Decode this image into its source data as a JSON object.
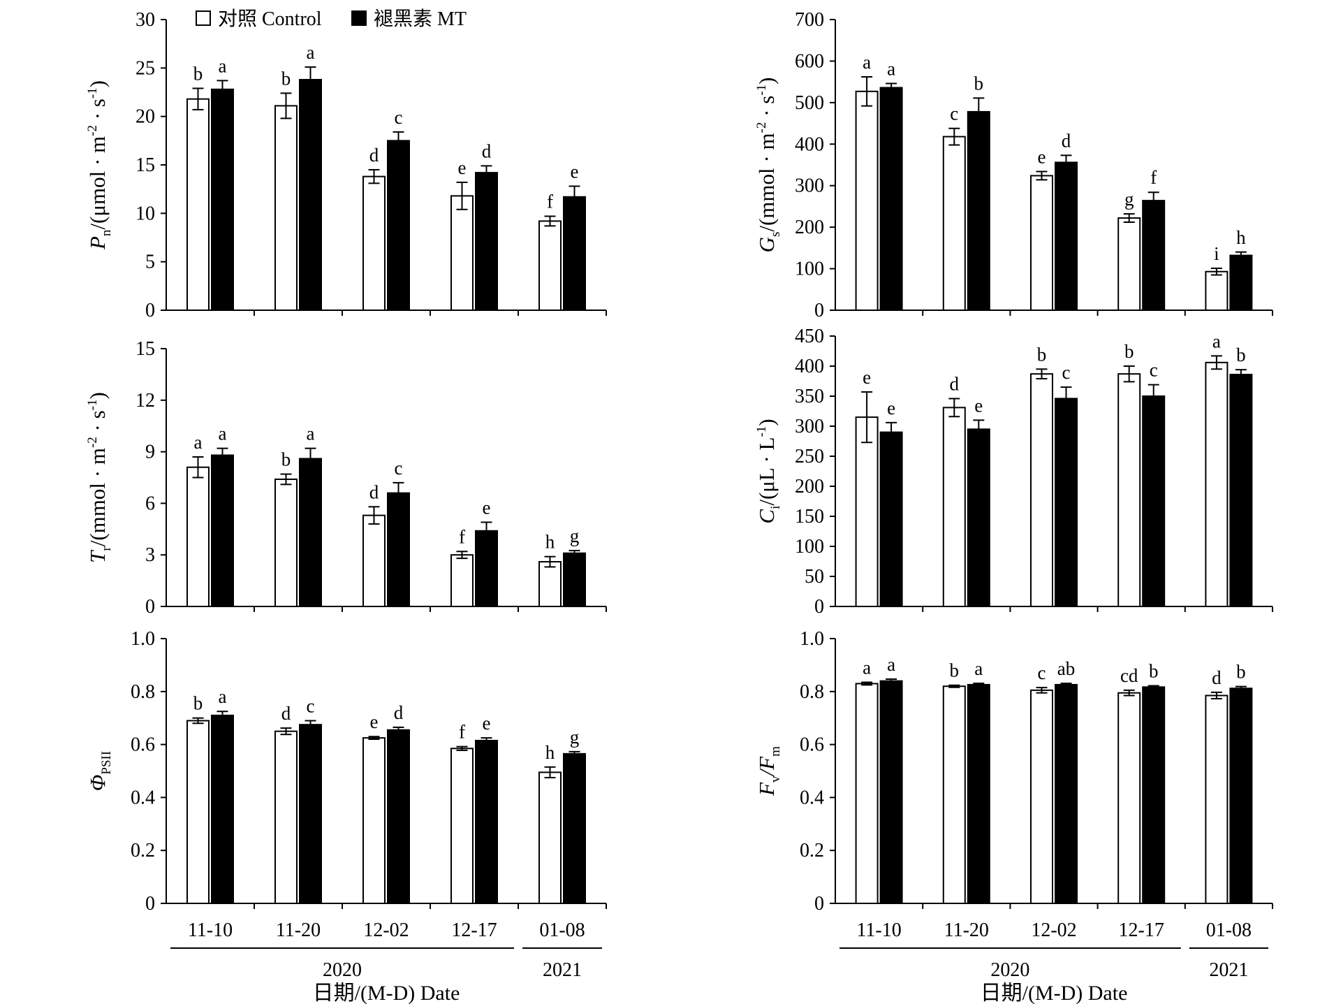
{
  "legend": [
    {
      "name": "对照 Control",
      "fill": "#ffffff"
    },
    {
      "name": "褪黑素 MT",
      "fill": "#000000"
    }
  ],
  "x_axis": {
    "dates": [
      "11-10",
      "11-20",
      "12-02",
      "12-17",
      "01-08"
    ],
    "years": [
      {
        "label": "2020",
        "span": [
          0,
          3
        ]
      },
      {
        "label": "2021",
        "span": [
          4,
          4
        ]
      }
    ],
    "title": "日期/(M-D) Date"
  },
  "colors": {
    "control": "#ffffff",
    "mt": "#000000",
    "stroke": "#000000"
  },
  "chart_data": [
    {
      "type": "bar",
      "categories": [
        "11-10",
        "11-20",
        "12-02",
        "12-17",
        "01-08"
      ],
      "ylabel": {
        "main": "P",
        "sub": "n",
        "unit": "/(μmol · m",
        "sup1": "-2",
        "mid": " · s",
        "sup2": "-1",
        "end": ")"
      },
      "ylim": [
        0,
        30
      ],
      "yticks": [
        0,
        5,
        10,
        15,
        20,
        25,
        30
      ],
      "series": [
        {
          "name": "对照 Control",
          "values": [
            21.8,
            21.1,
            13.8,
            11.8,
            9.2
          ],
          "errors": [
            1.1,
            1.3,
            0.7,
            1.4,
            0.5
          ],
          "letters": [
            "b",
            "b",
            "d",
            "e",
            "f"
          ]
        },
        {
          "name": "褪黑素 MT",
          "values": [
            22.8,
            23.8,
            17.5,
            14.2,
            11.7
          ],
          "errors": [
            0.9,
            1.3,
            0.9,
            0.7,
            1.1
          ],
          "letters": [
            "a",
            "a",
            "c",
            "d",
            "e"
          ]
        }
      ]
    },
    {
      "type": "bar",
      "categories": [
        "11-10",
        "11-20",
        "12-02",
        "12-17",
        "01-08"
      ],
      "ylabel": {
        "main": "G",
        "sub": "s",
        "unit": "/(mmol · m",
        "sup1": "-2",
        "mid": " · s",
        "sup2": "-1",
        "end": ")"
      },
      "ylim": [
        0,
        700
      ],
      "yticks": [
        0,
        100,
        200,
        300,
        400,
        500,
        600,
        700
      ],
      "series": [
        {
          "name": "对照 Control",
          "values": [
            527,
            418,
            324,
            222,
            93
          ],
          "errors": [
            35,
            20,
            10,
            10,
            8
          ],
          "letters": [
            "a",
            "c",
            "e",
            "g",
            "i"
          ]
        },
        {
          "name": "褪黑素 MT",
          "values": [
            536,
            478,
            356,
            264,
            132
          ],
          "errors": [
            10,
            33,
            17,
            20,
            8
          ],
          "letters": [
            "a",
            "b",
            "d",
            "f",
            "h"
          ]
        }
      ]
    },
    {
      "type": "bar",
      "categories": [
        "11-10",
        "11-20",
        "12-02",
        "12-17",
        "01-08"
      ],
      "ylabel": {
        "main": "T",
        "sub": "r",
        "unit": "/(mmol · m",
        "sup1": "-2",
        "mid": " · s",
        "sup2": "-1",
        "end": ")"
      },
      "ylim": [
        0,
        15
      ],
      "yticks": [
        0,
        3,
        6,
        9,
        12,
        15
      ],
      "series": [
        {
          "name": "对照 Control",
          "values": [
            8.1,
            7.4,
            5.3,
            3.0,
            2.6
          ],
          "errors": [
            0.6,
            0.3,
            0.5,
            0.2,
            0.3
          ],
          "letters": [
            "a",
            "b",
            "d",
            "f",
            "h"
          ]
        },
        {
          "name": "褪黑素 MT",
          "values": [
            8.8,
            8.6,
            6.6,
            4.4,
            3.1
          ],
          "errors": [
            0.4,
            0.6,
            0.6,
            0.5,
            0.15
          ],
          "letters": [
            "a",
            "a",
            "c",
            "e",
            "g"
          ]
        }
      ]
    },
    {
      "type": "bar",
      "categories": [
        "11-10",
        "11-20",
        "12-02",
        "12-17",
        "01-08"
      ],
      "ylabel": {
        "main": "C",
        "sub": "i",
        "unit": "/(μL · L",
        "sup1": "-1",
        "mid": "",
        "sup2": "",
        "end": ")"
      },
      "ylim": [
        0,
        450
      ],
      "yticks": [
        0,
        50,
        100,
        150,
        200,
        250,
        300,
        350,
        400,
        450
      ],
      "series": [
        {
          "name": "对照 Control",
          "values": [
            315,
            331,
            387,
            387,
            406
          ],
          "errors": [
            42,
            15,
            8,
            13,
            11
          ],
          "letters": [
            "e",
            "d",
            "b",
            "b",
            "a"
          ]
        },
        {
          "name": "褪黑素 MT",
          "values": [
            290,
            295,
            346,
            350,
            386
          ],
          "errors": [
            16,
            15,
            19,
            19,
            8
          ],
          "letters": [
            "e",
            "e",
            "c",
            "c",
            "b"
          ]
        }
      ]
    },
    {
      "type": "bar",
      "categories": [
        "11-10",
        "11-20",
        "12-02",
        "12-17",
        "01-08"
      ],
      "ylabel": {
        "main": "Φ",
        "sub": "PSII",
        "unit": "",
        "sup1": "",
        "mid": "",
        "sup2": "",
        "end": ""
      },
      "ylim": [
        0,
        1.0
      ],
      "yticks": [
        0,
        0.2,
        0.4,
        0.6,
        0.8,
        1.0
      ],
      "ytickFormat": 1,
      "series": [
        {
          "name": "对照 Control",
          "values": [
            0.69,
            0.65,
            0.625,
            0.585,
            0.495
          ],
          "errors": [
            0.01,
            0.012,
            0.005,
            0.007,
            0.02
          ],
          "letters": [
            "b",
            "d",
            "e",
            "f",
            "h"
          ]
        },
        {
          "name": "褪黑素 MT",
          "values": [
            0.71,
            0.675,
            0.655,
            0.615,
            0.565
          ],
          "errors": [
            0.015,
            0.015,
            0.01,
            0.01,
            0.008
          ],
          "letters": [
            "a",
            "c",
            "d",
            "e",
            "g"
          ]
        }
      ]
    },
    {
      "type": "bar",
      "categories": [
        "11-10",
        "11-20",
        "12-02",
        "12-17",
        "01-08"
      ],
      "ylabel": {
        "main": "F",
        "sub": "v",
        "unit": "/F",
        "sup1": "",
        "mid": "",
        "sup2": "",
        "end": "",
        "sub2": "m"
      },
      "ylim": [
        0,
        1.0
      ],
      "yticks": [
        0,
        0.2,
        0.4,
        0.6,
        0.8,
        1.0
      ],
      "ytickFormat": 1,
      "series": [
        {
          "name": "对照 Control",
          "values": [
            0.83,
            0.82,
            0.805,
            0.795,
            0.785
          ],
          "errors": [
            0.005,
            0.004,
            0.01,
            0.01,
            0.012
          ],
          "letters": [
            "a",
            "b",
            "c",
            "cd",
            "d"
          ]
        },
        {
          "name": "褪黑素 MT",
          "values": [
            0.84,
            0.826,
            0.826,
            0.817,
            0.812
          ],
          "errors": [
            0.007,
            0.005,
            0.005,
            0.005,
            0.007
          ],
          "letters": [
            "a",
            "a",
            "ab",
            "b",
            "b"
          ]
        }
      ]
    }
  ]
}
